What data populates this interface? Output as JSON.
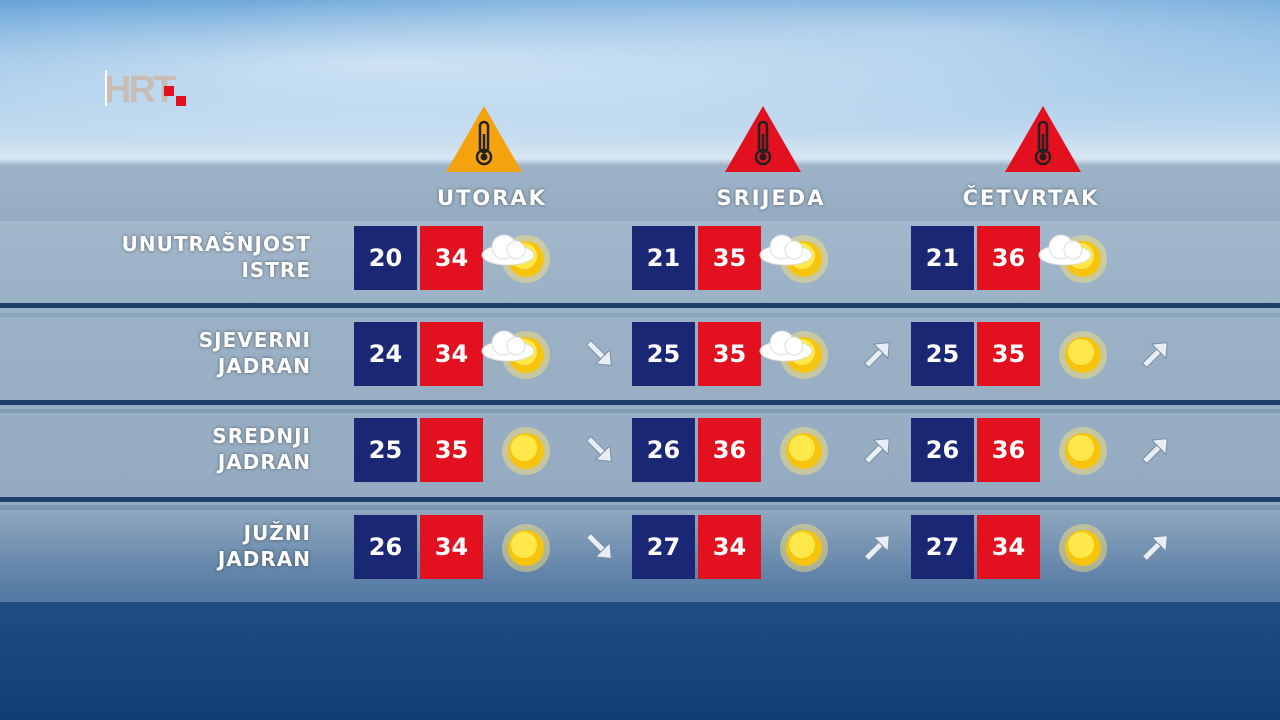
{
  "logo": "HRT",
  "colors": {
    "min": "#1a2775",
    "max": "#e3111f",
    "warning_orange": "#f5a20f",
    "warning_red": "#e3111f"
  },
  "days": [
    {
      "name": "UTORAK",
      "warning": "orange"
    },
    {
      "name": "SRIJEDA",
      "warning": "red"
    },
    {
      "name": "ČETVRTAK",
      "warning": "red"
    }
  ],
  "regions": [
    {
      "line1": "UNUTRAŠNJOST",
      "line2": "ISTRE",
      "cells": [
        {
          "min": "20",
          "max": "34",
          "icon": "partly-cloudy",
          "trend": ""
        },
        {
          "min": "21",
          "max": "35",
          "icon": "partly-cloudy",
          "trend": ""
        },
        {
          "min": "21",
          "max": "36",
          "icon": "partly-cloudy",
          "trend": ""
        }
      ]
    },
    {
      "line1": "SJEVERNI",
      "line2": "JADRAN",
      "cells": [
        {
          "min": "24",
          "max": "34",
          "icon": "partly-cloudy",
          "trend": "down-right"
        },
        {
          "min": "25",
          "max": "35",
          "icon": "partly-cloudy",
          "trend": "up-right"
        },
        {
          "min": "25",
          "max": "35",
          "icon": "sunny",
          "trend": "up-right"
        }
      ]
    },
    {
      "line1": "SREDNJI",
      "line2": "JADRAN",
      "cells": [
        {
          "min": "25",
          "max": "35",
          "icon": "sunny",
          "trend": "down-right"
        },
        {
          "min": "26",
          "max": "36",
          "icon": "sunny",
          "trend": "up-right"
        },
        {
          "min": "26",
          "max": "36",
          "icon": "sunny",
          "trend": "up-right"
        }
      ]
    },
    {
      "line1": "JUŽNI",
      "line2": "JADRAN",
      "cells": [
        {
          "min": "26",
          "max": "34",
          "icon": "sunny",
          "trend": "down-right"
        },
        {
          "min": "27",
          "max": "34",
          "icon": "sunny",
          "trend": "up-right"
        },
        {
          "min": "27",
          "max": "34",
          "icon": "sunny",
          "trend": "up-right"
        }
      ]
    }
  ]
}
